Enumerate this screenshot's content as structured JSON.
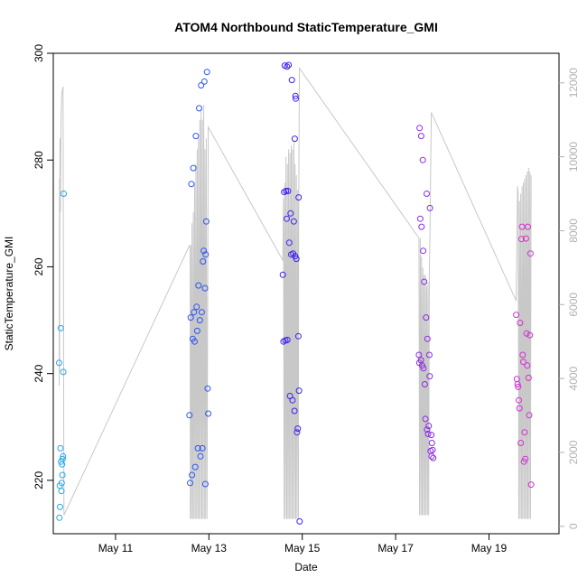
{
  "chart_data": {
    "type": "scatter",
    "title": "ATOM4 Northbound StaticTemperature_GMI",
    "xlabel": "Date",
    "ylabel": "StaticTemperature_GMI",
    "xlim": [
      "2016-05-09T16:00",
      "2016-05-20T12:00"
    ],
    "ylim": [
      210,
      300
    ],
    "y2lim": [
      -200,
      12800
    ],
    "x_ticks": [
      {
        "date": "2016-05-11",
        "label": "May 11"
      },
      {
        "date": "2016-05-13",
        "label": "May 13"
      },
      {
        "date": "2016-05-15",
        "label": "May 15"
      },
      {
        "date": "2016-05-17",
        "label": "May 17"
      },
      {
        "date": "2016-05-19",
        "label": "May 19"
      }
    ],
    "y_ticks": [
      220,
      240,
      260,
      280,
      300
    ],
    "y2_ticks": [
      0,
      2000,
      4000,
      6000,
      8000,
      10000,
      12000
    ],
    "grid": false,
    "legend": "none",
    "colors": {
      "flight1": "#22a7e6",
      "flight2": "#2b55f0",
      "flight3": "#3a22ee",
      "flight4": "#8a2be2",
      "flight5": "#d62fd0",
      "altitude": "#c8c8c8"
    },
    "series": [
      {
        "color_key": "flight1",
        "points": [
          [
            "2016-05-09T19:00",
            242
          ],
          [
            "2016-05-09T19:10",
            213
          ],
          [
            "2016-05-09T19:20",
            219
          ],
          [
            "2016-05-09T19:30",
            215
          ],
          [
            "2016-05-09T19:40",
            226
          ],
          [
            "2016-05-09T19:50",
            248.5
          ],
          [
            "2016-05-09T20:00",
            223.5
          ],
          [
            "2016-05-09T20:10",
            218
          ],
          [
            "2016-05-09T20:20",
            219.5
          ],
          [
            "2016-05-09T20:30",
            223
          ],
          [
            "2016-05-09T20:40",
            221
          ],
          [
            "2016-05-09T20:50",
            224
          ],
          [
            "2016-05-09T21:00",
            224.5
          ],
          [
            "2016-05-09T21:10",
            240.3
          ],
          [
            "2016-05-09T21:20",
            273.7
          ]
        ]
      },
      {
        "color_key": "flight2",
        "points": [
          [
            "2016-05-12T14:00",
            232.2
          ],
          [
            "2016-05-12T14:20",
            219.5
          ],
          [
            "2016-05-12T14:40",
            250.5
          ],
          [
            "2016-05-12T15:00",
            275.5
          ],
          [
            "2016-05-12T15:20",
            221
          ],
          [
            "2016-05-12T15:40",
            246.5
          ],
          [
            "2016-05-12T16:00",
            278.5
          ],
          [
            "2016-05-12T16:20",
            251.5
          ],
          [
            "2016-05-12T16:40",
            246
          ],
          [
            "2016-05-12T17:00",
            222.5
          ],
          [
            "2016-05-12T17:20",
            284.5
          ],
          [
            "2016-05-12T17:40",
            252.5
          ],
          [
            "2016-05-12T18:00",
            248
          ],
          [
            "2016-05-12T18:20",
            226
          ],
          [
            "2016-05-12T18:40",
            256.5
          ],
          [
            "2016-05-12T19:00",
            289.7
          ],
          [
            "2016-05-12T19:20",
            250
          ],
          [
            "2016-05-12T19:40",
            224.5
          ],
          [
            "2016-05-12T20:00",
            294
          ],
          [
            "2016-05-12T20:20",
            251.5
          ],
          [
            "2016-05-12T20:40",
            226
          ],
          [
            "2016-05-12T21:00",
            261
          ],
          [
            "2016-05-12T21:20",
            263
          ],
          [
            "2016-05-12T21:40",
            294.7
          ],
          [
            "2016-05-12T22:00",
            256
          ],
          [
            "2016-05-12T22:10",
            219.3
          ],
          [
            "2016-05-12T22:20",
            262.3
          ],
          [
            "2016-05-12T22:40",
            268.5
          ],
          [
            "2016-05-12T23:00",
            296.5
          ],
          [
            "2016-05-12T23:20",
            237.2
          ],
          [
            "2016-05-12T23:40",
            232.5
          ]
        ]
      },
      {
        "color_key": "flight3",
        "points": [
          [
            "2016-05-14T14:00",
            258.5
          ],
          [
            "2016-05-14T14:20",
            246
          ],
          [
            "2016-05-14T14:40",
            274
          ],
          [
            "2016-05-14T15:00",
            297.7
          ],
          [
            "2016-05-14T15:20",
            246.2
          ],
          [
            "2016-05-14T15:40",
            274.2
          ],
          [
            "2016-05-14T16:00",
            269
          ],
          [
            "2016-05-14T16:10",
            297.5
          ],
          [
            "2016-05-14T16:20",
            246.3
          ],
          [
            "2016-05-14T16:40",
            274.2
          ],
          [
            "2016-05-14T17:00",
            297.8
          ],
          [
            "2016-05-14T17:20",
            264.5
          ],
          [
            "2016-05-14T17:40",
            235.8
          ],
          [
            "2016-05-14T18:00",
            270
          ],
          [
            "2016-05-14T18:20",
            262.3
          ],
          [
            "2016-05-14T18:40",
            295
          ],
          [
            "2016-05-14T19:00",
            235
          ],
          [
            "2016-05-14T19:20",
            262.5
          ],
          [
            "2016-05-14T19:40",
            268.5
          ],
          [
            "2016-05-14T20:00",
            233
          ],
          [
            "2016-05-14T20:10",
            284
          ],
          [
            "2016-05-14T20:20",
            262
          ],
          [
            "2016-05-14T20:30",
            292
          ],
          [
            "2016-05-14T20:40",
            291.5
          ],
          [
            "2016-05-14T21:00",
            261.5
          ],
          [
            "2016-05-14T21:20",
            229
          ],
          [
            "2016-05-14T21:40",
            229.7
          ],
          [
            "2016-05-14T22:00",
            247
          ],
          [
            "2016-05-14T22:10",
            273
          ],
          [
            "2016-05-14T22:20",
            236.8
          ],
          [
            "2016-05-14T22:40",
            212.3
          ]
        ]
      },
      {
        "color_key": "flight4",
        "points": [
          [
            "2016-05-17T12:00",
            243.5
          ],
          [
            "2016-05-17T12:10",
            242
          ],
          [
            "2016-05-17T12:20",
            286
          ],
          [
            "2016-05-17T12:40",
            269
          ],
          [
            "2016-05-17T13:00",
            242.5
          ],
          [
            "2016-05-17T13:10",
            284.5
          ],
          [
            "2016-05-17T13:20",
            267.5
          ],
          [
            "2016-05-17T13:40",
            241.5
          ],
          [
            "2016-05-17T14:00",
            280
          ],
          [
            "2016-05-17T14:10",
            263
          ],
          [
            "2016-05-17T14:20",
            241
          ],
          [
            "2016-05-17T14:40",
            257.2
          ],
          [
            "2016-05-17T15:00",
            238
          ],
          [
            "2016-05-17T15:20",
            231.5
          ],
          [
            "2016-05-17T15:40",
            250.5
          ],
          [
            "2016-05-17T16:00",
            273.7
          ],
          [
            "2016-05-17T16:10",
            229.5
          ],
          [
            "2016-05-17T16:20",
            246.5
          ],
          [
            "2016-05-17T16:40",
            228.7
          ],
          [
            "2016-05-17T17:00",
            230.2
          ],
          [
            "2016-05-17T17:20",
            243.5
          ],
          [
            "2016-05-17T17:30",
            239.5
          ],
          [
            "2016-05-17T17:40",
            271
          ],
          [
            "2016-05-17T18:00",
            225.5
          ],
          [
            "2016-05-17T18:20",
            228.5
          ],
          [
            "2016-05-17T18:30",
            224.5
          ],
          [
            "2016-05-17T18:40",
            227
          ],
          [
            "2016-05-17T19:00",
            225.7
          ],
          [
            "2016-05-17T19:20",
            224.2
          ]
        ]
      },
      {
        "color_key": "flight5",
        "points": [
          [
            "2016-05-19T14:00",
            251
          ],
          [
            "2016-05-19T14:20",
            239
          ],
          [
            "2016-05-19T14:40",
            238
          ],
          [
            "2016-05-19T15:00",
            237.5
          ],
          [
            "2016-05-19T15:20",
            235
          ],
          [
            "2016-05-19T15:40",
            233.5
          ],
          [
            "2016-05-19T16:00",
            249.5
          ],
          [
            "2016-05-19T16:20",
            227
          ],
          [
            "2016-05-19T16:40",
            265.2
          ],
          [
            "2016-05-19T17:00",
            267.5
          ],
          [
            "2016-05-19T17:20",
            243.5
          ],
          [
            "2016-05-19T17:40",
            242.2
          ],
          [
            "2016-05-19T18:00",
            223.5
          ],
          [
            "2016-05-19T18:20",
            229
          ],
          [
            "2016-05-19T18:40",
            224
          ],
          [
            "2016-05-19T19:00",
            265.3
          ],
          [
            "2016-05-19T19:20",
            247.5
          ],
          [
            "2016-05-19T19:40",
            241.5
          ],
          [
            "2016-05-19T20:00",
            267.5
          ],
          [
            "2016-05-19T20:20",
            239.2
          ],
          [
            "2016-05-19T20:40",
            232.2
          ],
          [
            "2016-05-19T21:00",
            247.2
          ],
          [
            "2016-05-19T21:20",
            262.5
          ],
          [
            "2016-05-19T21:40",
            219.2
          ]
        ]
      }
    ],
    "altitude_line": [
      [
        "2016-05-09T19:00",
        3800
      ],
      [
        "2016-05-09T19:10",
        9400
      ],
      [
        "2016-05-09T19:15",
        4200
      ],
      [
        "2016-05-09T19:25",
        10500
      ],
      [
        "2016-05-09T19:40",
        8500
      ],
      [
        "2016-05-09T20:00",
        11000
      ],
      [
        "2016-05-09T20:20",
        11700
      ],
      [
        "2016-05-09T21:00",
        11900
      ],
      [
        "2016-05-09T21:30",
        300
      ],
      [
        "2016-05-12T14:00",
        7600
      ],
      [
        "2016-05-12T14:20",
        7600
      ],
      [
        "2016-05-12T14:30",
        200
      ],
      [
        "2016-05-12T14:40",
        7600
      ],
      [
        "2016-05-12T15:00",
        200
      ],
      [
        "2016-05-12T15:20",
        8200
      ],
      [
        "2016-05-12T15:40",
        200
      ],
      [
        "2016-05-12T16:00",
        8500
      ],
      [
        "2016-05-12T16:20",
        200
      ],
      [
        "2016-05-12T16:40",
        9300
      ],
      [
        "2016-05-12T17:00",
        200
      ],
      [
        "2016-05-12T17:20",
        9800
      ],
      [
        "2016-05-12T17:40",
        200
      ],
      [
        "2016-05-12T18:00",
        10200
      ],
      [
        "2016-05-12T18:20",
        200
      ],
      [
        "2016-05-12T18:40",
        10500
      ],
      [
        "2016-05-12T19:00",
        200
      ],
      [
        "2016-05-12T19:20",
        11000
      ],
      [
        "2016-05-12T19:40",
        200
      ],
      [
        "2016-05-12T20:00",
        11300
      ],
      [
        "2016-05-12T20:20",
        200
      ],
      [
        "2016-05-12T20:40",
        11000
      ],
      [
        "2016-05-12T21:00",
        200
      ],
      [
        "2016-05-12T21:20",
        11400
      ],
      [
        "2016-05-12T21:40",
        200
      ],
      [
        "2016-05-12T22:00",
        10200
      ],
      [
        "2016-05-12T22:20",
        200
      ],
      [
        "2016-05-12T22:40",
        10500
      ],
      [
        "2016-05-12T23:00",
        200
      ],
      [
        "2016-05-12T23:40",
        10800
      ],
      [
        "2016-05-14T14:00",
        7200
      ],
      [
        "2016-05-14T14:20",
        8900
      ],
      [
        "2016-05-14T14:40",
        200
      ],
      [
        "2016-05-14T15:00",
        9300
      ],
      [
        "2016-05-14T15:20",
        200
      ],
      [
        "2016-05-14T15:40",
        10000
      ],
      [
        "2016-05-14T16:00",
        200
      ],
      [
        "2016-05-14T16:20",
        9800
      ],
      [
        "2016-05-14T16:40",
        200
      ],
      [
        "2016-05-14T17:00",
        10200
      ],
      [
        "2016-05-14T17:20",
        200
      ],
      [
        "2016-05-14T17:40",
        10100
      ],
      [
        "2016-05-14T18:00",
        200
      ],
      [
        "2016-05-14T18:20",
        10300
      ],
      [
        "2016-05-14T18:40",
        200
      ],
      [
        "2016-05-14T19:00",
        10200
      ],
      [
        "2016-05-14T19:20",
        200
      ],
      [
        "2016-05-14T19:40",
        10400
      ],
      [
        "2016-05-14T20:00",
        200
      ],
      [
        "2016-05-14T20:20",
        9800
      ],
      [
        "2016-05-14T20:40",
        200
      ],
      [
        "2016-05-14T21:00",
        9500
      ],
      [
        "2016-05-14T21:20",
        200
      ],
      [
        "2016-05-14T21:40",
        9100
      ],
      [
        "2016-05-14T22:00",
        200
      ],
      [
        "2016-05-14T22:10",
        8000
      ],
      [
        "2016-05-14T22:30",
        12400
      ],
      [
        "2016-05-17T12:00",
        7800
      ],
      [
        "2016-05-17T12:20",
        300
      ],
      [
        "2016-05-17T12:40",
        7800
      ],
      [
        "2016-05-17T13:00",
        300
      ],
      [
        "2016-05-17T13:20",
        7300
      ],
      [
        "2016-05-17T13:40",
        300
      ],
      [
        "2016-05-17T14:00",
        7000
      ],
      [
        "2016-05-17T14:20",
        300
      ],
      [
        "2016-05-17T14:40",
        6800
      ],
      [
        "2016-05-17T15:00",
        300
      ],
      [
        "2016-05-17T15:20",
        6800
      ],
      [
        "2016-05-17T15:40",
        300
      ],
      [
        "2016-05-17T16:00",
        6500
      ],
      [
        "2016-05-17T16:20",
        300
      ],
      [
        "2016-05-17T16:40",
        6600
      ],
      [
        "2016-05-17T17:00",
        300
      ],
      [
        "2016-05-17T17:20",
        6800
      ],
      [
        "2016-05-17T17:40",
        7900
      ],
      [
        "2016-05-17T18:20",
        11200
      ],
      [
        "2016-05-19T14:00",
        6100
      ],
      [
        "2016-05-19T14:40",
        9200
      ],
      [
        "2016-05-19T15:00",
        9000
      ],
      [
        "2016-05-19T15:20",
        200
      ],
      [
        "2016-05-19T15:40",
        8800
      ],
      [
        "2016-05-19T16:00",
        200
      ],
      [
        "2016-05-19T16:20",
        9000
      ],
      [
        "2016-05-19T16:40",
        200
      ],
      [
        "2016-05-19T17:00",
        9200
      ],
      [
        "2016-05-19T17:20",
        200
      ],
      [
        "2016-05-19T17:40",
        9300
      ],
      [
        "2016-05-19T18:00",
        200
      ],
      [
        "2016-05-19T18:20",
        9400
      ],
      [
        "2016-05-19T18:40",
        200
      ],
      [
        "2016-05-19T19:00",
        9500
      ],
      [
        "2016-05-19T19:20",
        200
      ],
      [
        "2016-05-19T19:40",
        9600
      ],
      [
        "2016-05-19T20:00",
        200
      ],
      [
        "2016-05-19T20:20",
        9700
      ],
      [
        "2016-05-19T20:40",
        200
      ],
      [
        "2016-05-19T21:00",
        9600
      ],
      [
        "2016-05-19T21:20",
        200
      ],
      [
        "2016-05-19T21:40",
        9500
      ]
    ]
  }
}
